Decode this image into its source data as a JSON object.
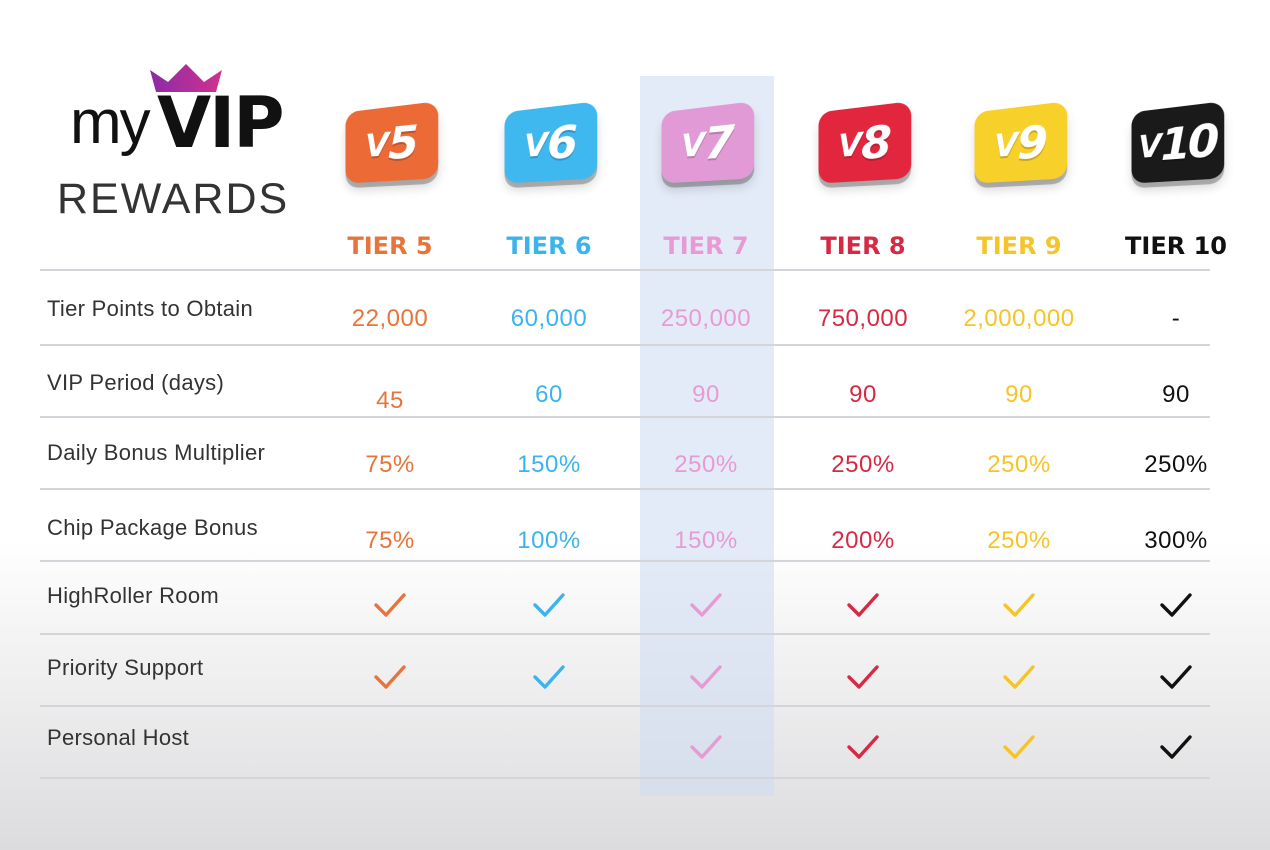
{
  "logo": {
    "line1_a": "my",
    "line1_b": "VIP",
    "line2": "REWARDS"
  },
  "tiers": [
    {
      "badge": "5",
      "label": "TIER 5",
      "color": "#e8743b",
      "badge_color": "#ec6a35"
    },
    {
      "badge": "6",
      "label": "TIER 6",
      "color": "#3db3ee",
      "badge_color": "#3fb8f0"
    },
    {
      "badge": "7",
      "label": "TIER 7",
      "color": "#e89ad4",
      "badge_color": "#e29ad6"
    },
    {
      "badge": "8",
      "label": "TIER 8",
      "color": "#d62a44",
      "badge_color": "#e2263e"
    },
    {
      "badge": "9",
      "label": "TIER 9",
      "color": "#f5c428",
      "badge_color": "#f7d02a"
    },
    {
      "badge": "10",
      "label": "TIER 10",
      "color": "#111111",
      "badge_color": "#1a1a1a"
    }
  ],
  "rows": [
    {
      "label": "Tier Points to Obtain",
      "values": [
        "22,000",
        "60,000",
        "250,000",
        "750,000",
        "2,000,000",
        "-"
      ]
    },
    {
      "label": "VIP Period (days)",
      "values": [
        "45",
        "60",
        "90",
        "90",
        "90",
        "90"
      ]
    },
    {
      "label": "Daily Bonus Multiplier",
      "values": [
        "75%",
        "150%",
        "250%",
        "250%",
        "250%",
        "250%"
      ]
    },
    {
      "label": "Chip Package Bonus",
      "values": [
        "75%",
        "100%",
        "150%",
        "200%",
        "250%",
        "300%"
      ]
    },
    {
      "label": "HighRoller Room",
      "checks": [
        true,
        true,
        true,
        true,
        true,
        true
      ]
    },
    {
      "label": "Priority Support",
      "checks": [
        true,
        true,
        true,
        true,
        true,
        true
      ]
    },
    {
      "label": "Personal Host",
      "checks": [
        false,
        false,
        true,
        true,
        true,
        true
      ]
    }
  ]
}
